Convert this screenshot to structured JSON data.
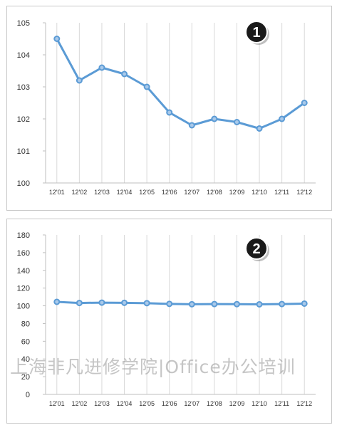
{
  "colors": {
    "line": "#5b9bd5",
    "marker_fill": "#a9c9ea",
    "grid": "#d9d9d9",
    "badge": "#1a1a1a"
  },
  "chart_data": [
    {
      "type": "line",
      "badge": "1",
      "categories": [
        "12'01",
        "12'02",
        "12'03",
        "12'04",
        "12'05",
        "12'06",
        "12'07",
        "12'08",
        "12'09",
        "12'10",
        "12'11",
        "12'12"
      ],
      "values": [
        104.5,
        103.2,
        103.6,
        103.4,
        103.0,
        102.2,
        101.8,
        102.0,
        101.9,
        101.7,
        102.0,
        102.5
      ],
      "ylim": [
        100,
        105
      ],
      "yticks": [
        100,
        101,
        102,
        103,
        104,
        105
      ],
      "grid": "vertical"
    },
    {
      "type": "line",
      "badge": "2",
      "categories": [
        "12'01",
        "12'02",
        "12'03",
        "12'04",
        "12'05",
        "12'06",
        "12'07",
        "12'08",
        "12'09",
        "12'10",
        "12'11",
        "12'12"
      ],
      "values": [
        104.5,
        103.2,
        103.6,
        103.4,
        103.0,
        102.2,
        101.8,
        102.0,
        101.9,
        101.7,
        102.0,
        102.5
      ],
      "ylim": [
        0,
        180
      ],
      "yticks": [
        0,
        20,
        40,
        60,
        80,
        100,
        120,
        140,
        160,
        180
      ],
      "grid": "vertical"
    }
  ],
  "watermark": "上海非凡进修学院|Office办公培训"
}
